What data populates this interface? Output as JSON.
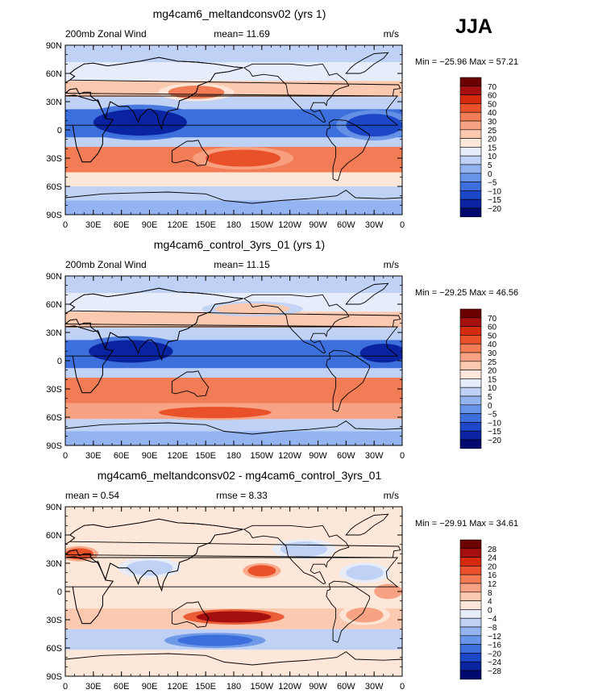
{
  "season_label": "JJA",
  "panels": [
    {
      "title": "mg4cam6_meltandconsv02 (yrs 1)",
      "left_label": "200mb  Zonal Wind",
      "center_label": "mean=   11.69",
      "units": "m/s",
      "minmax": "Min = −25.96  Max =   57.21",
      "colorbar": {
        "labels": [
          "70",
          "60",
          "50",
          "40",
          "30",
          "25",
          "20",
          "15",
          "10",
          "5",
          "0",
          "−5",
          "−10",
          "−15",
          "−20"
        ],
        "colors": [
          "#6a0000",
          "#a50f0f",
          "#d42a10",
          "#e8512a",
          "#f17c55",
          "#f7a383",
          "#fbc8b0",
          "#fde7d8",
          "#e6ecfa",
          "#bfd2f6",
          "#93b4f0",
          "#6794e6",
          "#3c6fdc",
          "#1c47c6",
          "#0a23a0",
          "#000a6e"
        ]
      }
    },
    {
      "title": "mg4cam6_control_3yrs_01 (yrs 1)",
      "left_label": "200mb  Zonal Wind",
      "center_label": "mean=   11.15",
      "units": "m/s",
      "minmax": "Min = −29.25  Max =   46.56",
      "colorbar": {
        "labels": [
          "70",
          "60",
          "50",
          "40",
          "30",
          "25",
          "20",
          "15",
          "10",
          "5",
          "0",
          "−5",
          "−10",
          "−15",
          "−20"
        ],
        "colors": [
          "#6a0000",
          "#a50f0f",
          "#d42a10",
          "#e8512a",
          "#f17c55",
          "#f7a383",
          "#fbc8b0",
          "#fde7d8",
          "#e6ecfa",
          "#bfd2f6",
          "#93b4f0",
          "#6794e6",
          "#3c6fdc",
          "#1c47c6",
          "#0a23a0",
          "#000a6e"
        ]
      }
    },
    {
      "title": "mg4cam6_meltandconsv02 - mg4cam6_control_3yrs_01",
      "left_label": "mean =    0.54",
      "center_label": "rmse =    8.33",
      "units": "m/s",
      "minmax": "Min = −29.91  Max =   34.61",
      "colorbar": {
        "labels": [
          "28",
          "24",
          "20",
          "16",
          "12",
          "8",
          "4",
          "0",
          "−4",
          "−8",
          "−12",
          "−16",
          "−20",
          "−24",
          "−28"
        ],
        "colors": [
          "#6a0000",
          "#a50f0f",
          "#d42a10",
          "#e8512a",
          "#f17c55",
          "#f7a383",
          "#fbc8b0",
          "#fde7d8",
          "#e6ecfa",
          "#bfd2f6",
          "#93b4f0",
          "#6794e6",
          "#3c6fdc",
          "#1c47c6",
          "#0a23a0",
          "#000a6e"
        ]
      }
    }
  ],
  "chart_data": [
    {
      "type": "heatmap",
      "title": "mg4cam6_meltandconsv02 (yrs 1)",
      "x_ticks": [
        "0",
        "30E",
        "60E",
        "90E",
        "120E",
        "150E",
        "180",
        "150W",
        "120W",
        "90W",
        "60W",
        "30W",
        "0"
      ],
      "y_ticks": [
        "90N",
        "60N",
        "30N",
        "0",
        "30S",
        "60S",
        "90S"
      ],
      "xlim": [
        0,
        360
      ],
      "ylim": [
        -90,
        90
      ],
      "bands": [
        {
          "lat_from": 90,
          "lat_to": 72,
          "value": 5
        },
        {
          "lat_from": 72,
          "lat_to": 52,
          "value": 10
        },
        {
          "lat_from": 52,
          "lat_to": 35,
          "value": 20
        },
        {
          "lat_from": 35,
          "lat_to": 22,
          "value": 5
        },
        {
          "lat_from": 22,
          "lat_to": -8,
          "value": -10
        },
        {
          "lat_from": -8,
          "lat_to": -18,
          "value": 5
        },
        {
          "lat_from": -18,
          "lat_to": -45,
          "value": 30
        },
        {
          "lat_from": -45,
          "lat_to": -60,
          "value": 15
        },
        {
          "lat_from": -60,
          "lat_to": -75,
          "value": 5
        },
        {
          "lat_from": -75,
          "lat_to": -90,
          "value": 0
        }
      ],
      "features": [
        {
          "lon": 80,
          "lat": 8,
          "value": -20,
          "rx": 50,
          "ry": 14
        },
        {
          "lon": 190,
          "lat": -30,
          "value": 40,
          "rx": 40,
          "ry": 9
        },
        {
          "lon": 330,
          "lat": 5,
          "value": -15,
          "rx": 30,
          "ry": 12
        },
        {
          "lon": 140,
          "lat": 40,
          "value": 30,
          "rx": 30,
          "ry": 7
        }
      ]
    },
    {
      "type": "heatmap",
      "title": "mg4cam6_control_3yrs_01 (yrs 1)",
      "x_ticks": [
        "0",
        "30E",
        "60E",
        "90E",
        "120E",
        "150E",
        "180",
        "150W",
        "120W",
        "90W",
        "60W",
        "30W",
        "0"
      ],
      "y_ticks": [
        "90N",
        "60N",
        "30N",
        "0",
        "30S",
        "60S",
        "90S"
      ],
      "xlim": [
        0,
        360
      ],
      "ylim": [
        -90,
        90
      ],
      "bands": [
        {
          "lat_from": 90,
          "lat_to": 72,
          "value": 5
        },
        {
          "lat_from": 72,
          "lat_to": 52,
          "value": 10
        },
        {
          "lat_from": 52,
          "lat_to": 35,
          "value": 20
        },
        {
          "lat_from": 35,
          "lat_to": 22,
          "value": 5
        },
        {
          "lat_from": 22,
          "lat_to": -8,
          "value": -10
        },
        {
          "lat_from": -8,
          "lat_to": -18,
          "value": 5
        },
        {
          "lat_from": -18,
          "lat_to": -45,
          "value": 30
        },
        {
          "lat_from": -45,
          "lat_to": -62,
          "value": 25
        },
        {
          "lat_from": -62,
          "lat_to": -75,
          "value": 5
        },
        {
          "lat_from": -75,
          "lat_to": -90,
          "value": 0
        }
      ],
      "features": [
        {
          "lon": 70,
          "lat": 10,
          "value": -20,
          "rx": 45,
          "ry": 12
        },
        {
          "lon": 340,
          "lat": 8,
          "value": -20,
          "rx": 25,
          "ry": 10
        },
        {
          "lon": 160,
          "lat": -55,
          "value": 40,
          "rx": 60,
          "ry": 6
        },
        {
          "lon": 200,
          "lat": 55,
          "value": 20,
          "rx": 40,
          "ry": 6
        }
      ]
    },
    {
      "type": "heatmap",
      "title": "mg4cam6_meltandconsv02 - mg4cam6_control_3yrs_01",
      "x_ticks": [
        "0",
        "30E",
        "60E",
        "90E",
        "120E",
        "150E",
        "180",
        "150W",
        "120W",
        "90W",
        "60W",
        "30W",
        "0"
      ],
      "y_ticks": [
        "90N",
        "60N",
        "30N",
        "0",
        "30S",
        "60S",
        "90S"
      ],
      "xlim": [
        0,
        360
      ],
      "ylim": [
        -90,
        90
      ],
      "bands": [
        {
          "lat_from": 90,
          "lat_to": -18,
          "value": 0
        },
        {
          "lat_from": -18,
          "lat_to": -40,
          "value": 4
        },
        {
          "lat_from": -40,
          "lat_to": -62,
          "value": -8
        },
        {
          "lat_from": -62,
          "lat_to": -90,
          "value": 0
        }
      ],
      "features": [
        {
          "lon": 180,
          "lat": -27,
          "value": 24,
          "rx": 40,
          "ry": 6
        },
        {
          "lon": 160,
          "lat": -52,
          "value": -20,
          "rx": 40,
          "ry": 6
        },
        {
          "lon": 15,
          "lat": 40,
          "value": 16,
          "rx": 15,
          "ry": 6
        },
        {
          "lon": 210,
          "lat": 22,
          "value": 16,
          "rx": 15,
          "ry": 6
        },
        {
          "lon": 255,
          "lat": 45,
          "value": -8,
          "rx": 25,
          "ry": 8
        },
        {
          "lon": 320,
          "lat": 20,
          "value": -8,
          "rx": 20,
          "ry": 8
        },
        {
          "lon": 90,
          "lat": 25,
          "value": -8,
          "rx": 25,
          "ry": 8
        },
        {
          "lon": 345,
          "lat": 0,
          "value": 8,
          "rx": 15,
          "ry": 8
        },
        {
          "lon": 320,
          "lat": -25,
          "value": 8,
          "rx": 20,
          "ry": 8
        }
      ]
    }
  ]
}
